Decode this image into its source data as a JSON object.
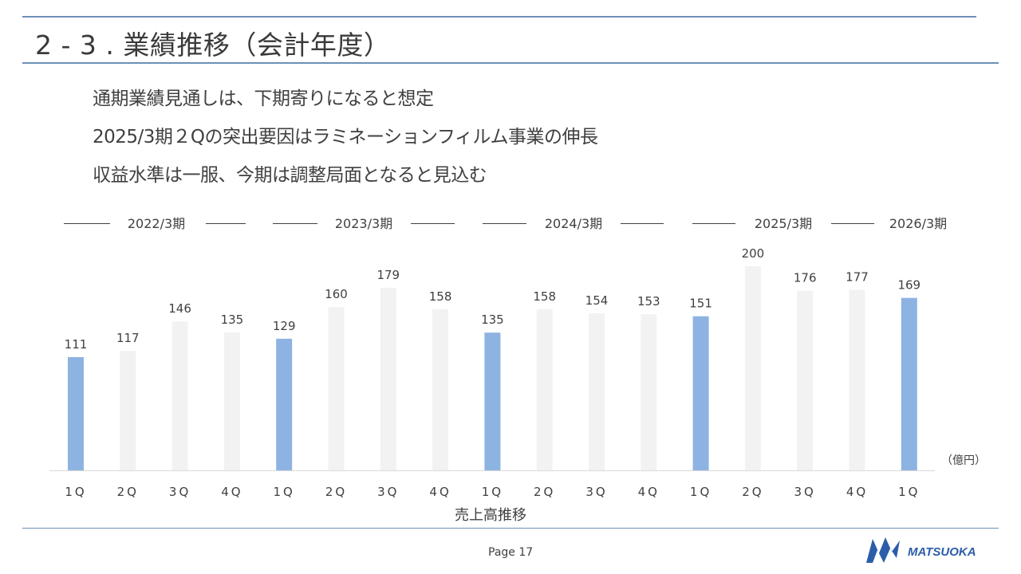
{
  "slide": {
    "title": "2 - 3 . 業績推移（会計年度）",
    "bullets": [
      "通期業績見通しは、下期寄りになると想定",
      "2025/3期２Qの突出要因はラミネーションフィルム事業の伸長",
      "収益水準は一服、今期は調整局面となると見込む"
    ],
    "page_label": "Page 17",
    "logo_text": "MATSUOKA"
  },
  "colors": {
    "accent_line": "#6f8fb8",
    "bar_highlight": "#8db3e2",
    "bar_normal": "#f2f2f2",
    "logo": "#2b5da8"
  },
  "chart_data": {
    "type": "bar",
    "title": "売上高推移",
    "unit": "（億円）",
    "fiscal_years": [
      "2022/3期",
      "2023/3期",
      "2024/3期",
      "2025/3期",
      "2026/3期"
    ],
    "categories": [
      "1Q",
      "2Q",
      "3Q",
      "4Q",
      "1Q",
      "2Q",
      "3Q",
      "4Q",
      "1Q",
      "2Q",
      "3Q",
      "4Q",
      "1Q",
      "2Q",
      "3Q",
      "4Q",
      "1Q"
    ],
    "values": [
      111,
      117,
      146,
      135,
      129,
      160,
      179,
      158,
      135,
      158,
      154,
      153,
      151,
      200,
      176,
      177,
      169
    ],
    "highlight": [
      true,
      false,
      false,
      false,
      true,
      false,
      false,
      false,
      true,
      false,
      false,
      false,
      true,
      false,
      false,
      false,
      true
    ],
    "ylim": [
      0,
      200
    ]
  }
}
